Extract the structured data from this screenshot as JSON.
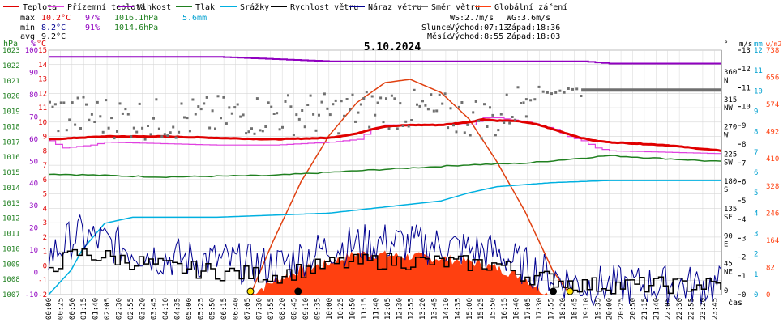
{
  "chart_data": {
    "type": "line",
    "title": "5.10.2024",
    "legend": [
      {
        "name": "Teplota",
        "color": "#e00000"
      },
      {
        "name": "Přízemní teplota",
        "color": "#e040e0"
      },
      {
        "name": "Vlhkost",
        "color": "#9000c0"
      },
      {
        "name": "Tlak",
        "color": "#208020"
      },
      {
        "name": "Srážky",
        "color": "#00b0e0"
      },
      {
        "name": "Rychlost větru",
        "color": "#000000"
      },
      {
        "name": "Náraz větru",
        "color": "#000090"
      },
      {
        "name": "Směr větru",
        "color": "#707070"
      },
      {
        "name": "Globální záření",
        "color": "#ff4010"
      }
    ],
    "stats": {
      "max": {
        "label": "max",
        "temp": "10.2°C",
        "hum": "97%",
        "press": "1016.1hPa",
        "rain": "5.6mm"
      },
      "min": {
        "label": "min",
        "temp": "8.2°C",
        "hum": "91%",
        "press": "1014.6hPa"
      },
      "avg": {
        "label": "avg",
        "temp": "9.2°C"
      }
    },
    "wind": {
      "ws": "WS:2.7m/s",
      "wg": "WG:3.6m/s"
    },
    "sun": {
      "label": "Slunce",
      "rise": "Východ:07:13",
      "set": "Západ:18:36"
    },
    "moon": {
      "label": "Měsíc",
      "rise": "Východ:8:55",
      "set": "Západ:18:03"
    },
    "left_axes": {
      "press": {
        "unit": "hPa",
        "ticks": [
          "1007",
          "1008",
          "1009",
          "1010",
          "1011",
          "1012",
          "1013",
          "1014",
          "1015",
          "1016",
          "1017",
          "1018",
          "1019",
          "1020",
          "1021",
          "1022",
          "1023"
        ]
      },
      "hum": {
        "unit": "%",
        "ticks": [
          "-10",
          "0",
          "10",
          "20",
          "30",
          "40",
          "50",
          "60",
          "70",
          "80",
          "90",
          "100"
        ]
      },
      "temp": {
        "unit": "°C",
        "ticks": [
          "-2",
          "-1",
          "0",
          "1",
          "2",
          "3",
          "4",
          "5",
          "6",
          "7",
          "8",
          "9",
          "10",
          "11",
          "12",
          "13",
          "14",
          "15"
        ]
      }
    },
    "right_axes": {
      "dir": {
        "unit": "°",
        "ticks": [
          {
            "v": "0",
            "d": ""
          },
          {
            "v": "45",
            "d": "NE"
          },
          {
            "v": "90",
            "d": "E"
          },
          {
            "v": "135",
            "d": "SE"
          },
          {
            "v": "180",
            "d": "S"
          },
          {
            "v": "225",
            "d": "SW"
          },
          {
            "v": "270",
            "d": "W"
          },
          {
            "v": "315",
            "d": "NW"
          },
          {
            "v": "360",
            "d": "N"
          }
        ]
      },
      "ms": {
        "unit": "m/s",
        "ticks": [
          "0",
          "1",
          "2",
          "3",
          "4",
          "5",
          "6",
          "7",
          "8",
          "9",
          "10",
          "11",
          "12",
          "13"
        ]
      },
      "mm": {
        "unit": "mm",
        "ticks": [
          "0",
          "1",
          "2",
          "3",
          "4",
          "5",
          "6",
          "7",
          "8",
          "9",
          "10",
          "11",
          "12"
        ]
      },
      "wm2": {
        "unit": "w/m2",
        "ticks": [
          "0",
          "82",
          "164",
          "246",
          "328",
          "410",
          "492",
          "574",
          "656",
          "738"
        ]
      }
    },
    "xlabel": "čas",
    "x_ticks": [
      "00:00",
      "00:25",
      "00:50",
      "01:15",
      "01:40",
      "02:05",
      "02:30",
      "02:55",
      "03:20",
      "03:45",
      "04:10",
      "04:35",
      "05:00",
      "05:25",
      "05:50",
      "06:15",
      "06:40",
      "07:05",
      "07:30",
      "07:55",
      "08:20",
      "08:45",
      "09:10",
      "09:35",
      "10:00",
      "10:25",
      "10:50",
      "11:15",
      "11:40",
      "12:05",
      "12:30",
      "12:55",
      "13:20",
      "13:45",
      "14:10",
      "14:35",
      "15:00",
      "15:25",
      "15:50",
      "16:15",
      "16:40",
      "17:05",
      "17:30",
      "17:55",
      "18:20",
      "18:45",
      "19:10",
      "19:35",
      "20:00",
      "20:25",
      "20:50",
      "21:15",
      "21:40",
      "22:05",
      "22:30",
      "22:55",
      "23:20",
      "23:45"
    ],
    "series_data": {
      "temperature_C": {
        "hours": [
          0,
          1,
          2,
          4,
          6,
          8,
          10,
          11,
          11.5,
          12,
          13,
          14,
          15,
          15.5,
          16,
          16.5,
          17,
          17.5,
          18,
          18.5,
          19,
          19.5,
          20,
          21,
          22,
          23,
          24
        ],
        "values": [
          8.8,
          8.9,
          9.0,
          9.0,
          8.9,
          8.8,
          8.9,
          9.2,
          9.5,
          9.7,
          9.8,
          9.8,
          10.0,
          10.2,
          10.1,
          10.1,
          10.0,
          9.8,
          9.5,
          9.2,
          8.9,
          8.7,
          8.6,
          8.5,
          8.4,
          8.2,
          8.0
        ]
      },
      "ground_temperature_C": {
        "hours": [
          0,
          0.5,
          1.5,
          2,
          4,
          6,
          7,
          8,
          10,
          11,
          11.5,
          12,
          13,
          15,
          15.5,
          16,
          17,
          18,
          18.5,
          19,
          19.5,
          20,
          22,
          24
        ],
        "values": [
          8.7,
          8.2,
          8.4,
          8.6,
          8.5,
          8.4,
          8.4,
          8.4,
          8.6,
          8.8,
          9.5,
          9.8,
          9.8,
          9.8,
          10.3,
          10.3,
          10.0,
          9.5,
          9.0,
          8.7,
          8.2,
          8.0,
          7.9,
          7.8
        ]
      },
      "humidity_pct": {
        "hours": [
          0,
          3,
          6,
          10,
          14,
          17,
          18,
          19,
          20,
          22,
          24
        ],
        "values": [
          97,
          97,
          97,
          95,
          95,
          95,
          95,
          95,
          94,
          94,
          94
        ]
      },
      "pressure_hPa": {
        "hours": [
          0,
          4,
          8,
          10,
          12,
          15,
          17,
          20,
          22,
          24
        ],
        "values": [
          1014.9,
          1014.7,
          1014.8,
          1015.0,
          1015.2,
          1015.5,
          1015.6,
          1016.1,
          1015.9,
          1015.7
        ]
      },
      "rain_mm": {
        "hours": [
          0,
          0.4,
          0.8,
          1.2,
          2,
          3,
          6,
          8,
          10,
          12,
          14,
          15,
          16,
          17,
          18,
          20,
          24
        ],
        "values": [
          0,
          0.6,
          1.2,
          2.2,
          3.5,
          3.8,
          3.8,
          3.9,
          4.0,
          4.3,
          4.6,
          5.0,
          5.3,
          5.4,
          5.5,
          5.6,
          5.6
        ]
      },
      "wind_direction_deg": {
        "hours": [
          0,
          2,
          4,
          6,
          8,
          10,
          12,
          14,
          16,
          17,
          18,
          19,
          24
        ],
        "values": [
          300,
          295,
          290,
          295,
          300,
          300,
          310,
          300,
          290,
          330,
          340,
          337,
          337
        ]
      },
      "wind_speed_ms": {
        "hours": [
          0,
          1,
          2,
          4,
          6,
          8,
          10,
          12,
          14,
          16,
          17,
          18,
          19,
          24
        ],
        "values": [
          1.5,
          2.2,
          2.0,
          1.5,
          1.2,
          1.0,
          1.6,
          1.8,
          1.7,
          1.6,
          1.0,
          0.8,
          0.5,
          0.5
        ]
      },
      "wind_gust_ms": {
        "hours": [
          0,
          1,
          2,
          3,
          4,
          6,
          8,
          10,
          12,
          14,
          16,
          17,
          18,
          19,
          24
        ],
        "values": [
          2.0,
          3.2,
          2.8,
          2.4,
          2.0,
          1.8,
          1.5,
          2.5,
          2.8,
          2.6,
          2.2,
          1.5,
          1.0,
          0.5,
          0.5
        ]
      },
      "global_radiation_wm2": {
        "hours": [
          7.2,
          8,
          9,
          10,
          11,
          12,
          13,
          14,
          15,
          16,
          17,
          17.8
        ],
        "values": [
          0,
          40,
          75,
          95,
          125,
          120,
          115,
          110,
          100,
          80,
          50,
          0
        ]
      },
      "theoretical_radiation_wm2": {
        "hours": [
          7.2,
          8,
          9,
          10,
          11,
          12,
          12.9,
          14,
          15,
          16,
          17,
          18,
          18.6
        ],
        "values": [
          0,
          160,
          340,
          480,
          580,
          640,
          650,
          610,
          530,
          400,
          250,
          70,
          0
        ]
      }
    },
    "markers": [
      {
        "label": "sunrise",
        "hour": 7.2
      },
      {
        "label": "moonrise",
        "hour": 8.9
      },
      {
        "label": "moonset",
        "hour": 18.0
      },
      {
        "label": "sunset",
        "hour": 18.6
      }
    ],
    "grid": true
  }
}
